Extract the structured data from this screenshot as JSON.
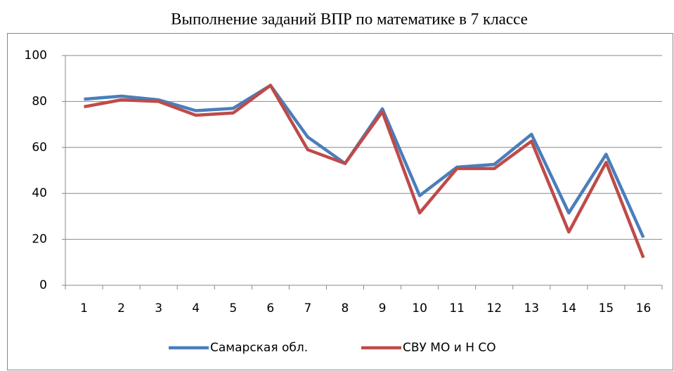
{
  "chart_data": {
    "type": "line",
    "title": "Выполнение заданий ВПР по математике в 7 классе",
    "categories": [
      "1",
      "2",
      "3",
      "4",
      "5",
      "6",
      "7",
      "8",
      "9",
      "10",
      "11",
      "12",
      "13",
      "14",
      "15",
      "16"
    ],
    "series": [
      {
        "name": "Самарская обл.",
        "color": "#4a7ebb",
        "values": [
          81,
          82.3,
          80.7,
          76,
          77,
          87,
          64.5,
          53,
          76.8,
          39,
          51.4,
          52.6,
          65.7,
          31.5,
          57,
          20.8
        ]
      },
      {
        "name": "СВУ МО и Н СО",
        "color": "#be4b48",
        "values": [
          77.7,
          80.7,
          80,
          74,
          75,
          87,
          59,
          53,
          75.5,
          31.5,
          50.8,
          50.8,
          62.7,
          23.2,
          53.5,
          12
        ]
      }
    ],
    "ylim": [
      0,
      100
    ],
    "yticks": [
      0,
      20,
      40,
      60,
      80,
      100
    ],
    "grid": true,
    "legend": "bottom"
  }
}
